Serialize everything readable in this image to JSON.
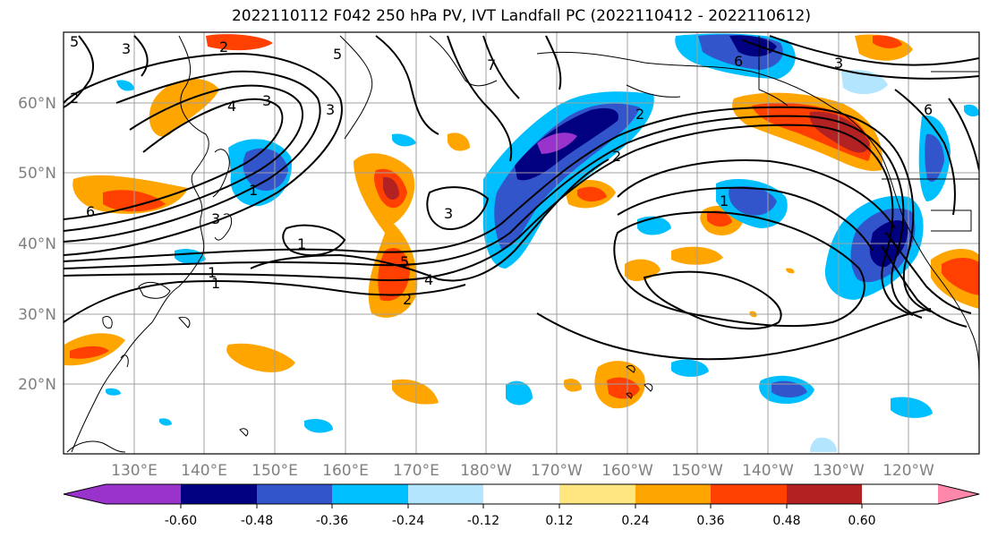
{
  "title": "2022110112 F042 250 hPa PV, IVT Landfall PC (2022110412 - 2022110612)",
  "lat_labels": [
    "60°N",
    "50°N",
    "40°N",
    "30°N",
    "20°N"
  ],
  "lon_labels": [
    "130°E",
    "140°E",
    "150°E",
    "160°E",
    "170°E",
    "180°W",
    "170°W",
    "160°W",
    "150°W",
    "140°W",
    "130°W",
    "120°W"
  ],
  "colorbar": {
    "tick_labels": [
      "-0.60",
      "-0.48",
      "-0.36",
      "-0.24",
      "-0.12",
      "0.12",
      "0.24",
      "0.36",
      "0.48",
      "0.60"
    ],
    "colors": [
      "#9933cc",
      "#000080",
      "#3355cc",
      "#00bfff",
      "#b3e5ff",
      "#ffffff",
      "#ffe680",
      "#ffa500",
      "#ff4000",
      "#b22222",
      "#ff88aa"
    ]
  },
  "contour_labels": [
    "5",
    "3",
    "2",
    "5",
    "3",
    "7",
    "6",
    "3",
    "2",
    "4",
    "3",
    "2",
    "6",
    "1",
    "2",
    "1",
    "3",
    "1",
    "1",
    "5",
    "4",
    "2",
    "3",
    "6",
    "1"
  ]
}
